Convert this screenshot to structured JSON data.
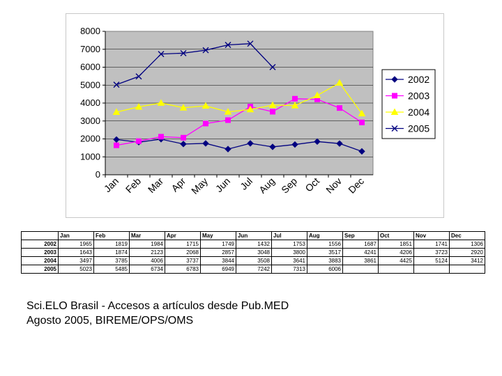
{
  "chart_data": {
    "type": "line",
    "categories": [
      "Jan",
      "Feb",
      "Mar",
      "Apr",
      "May",
      "Jun",
      "Jul",
      "Aug",
      "Sep",
      "Oct",
      "Nov",
      "Dec"
    ],
    "series": [
      {
        "name": "2002",
        "values": [
          1965,
          1819,
          1984,
          1715,
          1749,
          1432,
          1753,
          1556,
          1687,
          1851,
          1741,
          1306
        ],
        "color": "#000080",
        "marker": "diamond"
      },
      {
        "name": "2003",
        "values": [
          1643,
          1874,
          2123,
          2068,
          2857,
          3048,
          3800,
          3517,
          4241,
          4206,
          3723,
          2920
        ],
        "color": "#ff00ff",
        "marker": "square"
      },
      {
        "name": "2004",
        "values": [
          3497,
          3785,
          4006,
          3737,
          3844,
          3508,
          3641,
          3883,
          3861,
          4425,
          5124,
          3412
        ],
        "color": "#ffff00",
        "marker": "triangle"
      },
      {
        "name": "2005",
        "values": [
          5023,
          5485,
          6734,
          6783,
          6949,
          7242,
          7313,
          6006,
          null,
          null,
          null,
          null
        ],
        "color": "#000080",
        "marker": "x"
      }
    ],
    "y_ticks": [
      "0",
      "1000",
      "2000",
      "3000",
      "4000",
      "5000",
      "6000",
      "7000",
      "8000"
    ],
    "ylim": [
      0,
      8000
    ],
    "plot_background": "#c0c0c0",
    "gridlines": true,
    "legend_position": "right"
  },
  "table": {
    "headers": [
      "Jan",
      "Feb",
      "Mar",
      "Apr",
      "May",
      "Jun",
      "Jul",
      "Aug",
      "Sep",
      "Oct",
      "Nov",
      "Dec"
    ],
    "rows": [
      {
        "label": "2002",
        "cells": [
          "1965",
          "1819",
          "1984",
          "1715",
          "1749",
          "1432",
          "1753",
          "1556",
          "1687",
          "1851",
          "1741",
          "1306"
        ]
      },
      {
        "label": "2003",
        "cells": [
          "1643",
          "1874",
          "2123",
          "2068",
          "2857",
          "3048",
          "3800",
          "3517",
          "4241",
          "4206",
          "3723",
          "2920"
        ]
      },
      {
        "label": "2004",
        "cells": [
          "3497",
          "3785",
          "4006",
          "3737",
          "3844",
          "3508",
          "3641",
          "3883",
          "3861",
          "4425",
          "5124",
          "3412"
        ]
      },
      {
        "label": "2005",
        "cells": [
          "5023",
          "5485",
          "6734",
          "6783",
          "6949",
          "7242",
          "7313",
          "6006",
          "",
          "",
          "",
          ""
        ]
      }
    ]
  },
  "caption": {
    "line1": "Sci.ELO Brasil - Accesos a artículos desde Pub.MED",
    "line2": "Agosto 2005, BIREME/OPS/OMS"
  }
}
